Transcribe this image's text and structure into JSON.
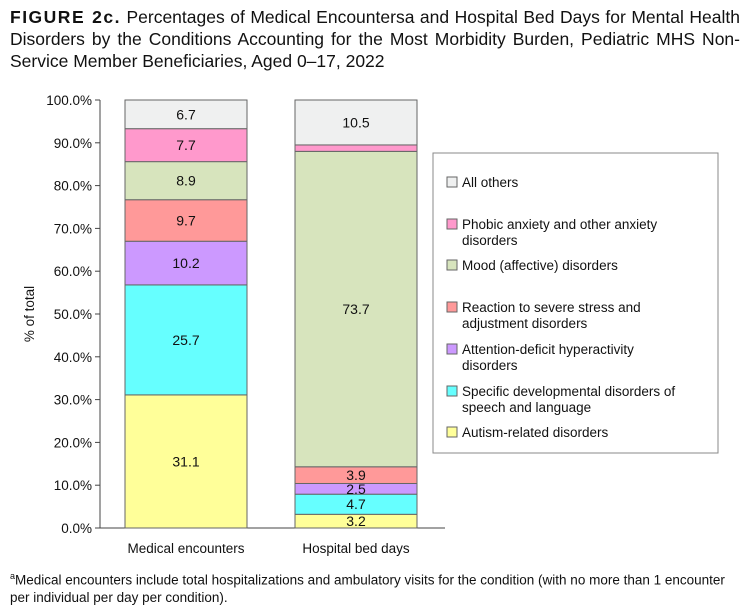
{
  "title": {
    "figure_label": "FIGURE 2c.",
    "text": "Percentages of Medical Encountersa and Hospital Bed Days for Mental Health Disorders by the Conditions Accounting for the Most Morbidity Burden, Pediatric MHS Non-Service Member Beneficiaries, Aged 0–17, 2022"
  },
  "footnote": {
    "marker": "a",
    "text": "Medical encounters include total hospitalizations and ambulatory visits for the condition (with no more than 1 encounter per individual per day per condition)."
  },
  "chart_data": {
    "type": "bar",
    "stacked": true,
    "categories": [
      "Medical encounters",
      "Hospital bed days"
    ],
    "ylabel": "% of total",
    "xlabel": "",
    "ylim": [
      0,
      100
    ],
    "yticks": [
      "0.0%",
      "10.0%",
      "20.0%",
      "30.0%",
      "40.0%",
      "50.0%",
      "60.0%",
      "70.0%",
      "80.0%",
      "90.0%",
      "100.0%"
    ],
    "grid": false,
    "legend_position": "right",
    "series": [
      {
        "name": "Autism-related disorders",
        "color": "#ffff99",
        "values": [
          31.1,
          3.2
        ],
        "labels": [
          "31.1",
          "3.2"
        ]
      },
      {
        "name": "Specific developmental disorders of speech and language",
        "color": "#66ffff",
        "values": [
          25.7,
          4.7
        ],
        "labels": [
          "25.7",
          "4.7"
        ]
      },
      {
        "name": "Attention-deficit hyperactivity disorders",
        "color": "#cc99ff",
        "values": [
          10.2,
          2.5
        ],
        "labels": [
          "10.2",
          "2.5"
        ]
      },
      {
        "name": "Reaction to severe stress and adjustment disorders",
        "color": "#ff9999",
        "values": [
          9.7,
          3.9
        ],
        "labels": [
          "9.7",
          "3.9"
        ]
      },
      {
        "name": "Mood (affective) disorders",
        "color": "#d7e4bd",
        "values": [
          8.9,
          73.7
        ],
        "labels": [
          "8.9",
          "73.7"
        ]
      },
      {
        "name": "Phobic anxiety and other anxiety disorders",
        "color": "#ff99cc",
        "values": [
          7.7,
          1.5
        ],
        "labels": [
          "7.7",
          ""
        ]
      },
      {
        "name": "All others",
        "color": "#eff0f0",
        "values": [
          6.7,
          10.5
        ],
        "labels": [
          "6.7",
          "10.5"
        ]
      }
    ]
  }
}
